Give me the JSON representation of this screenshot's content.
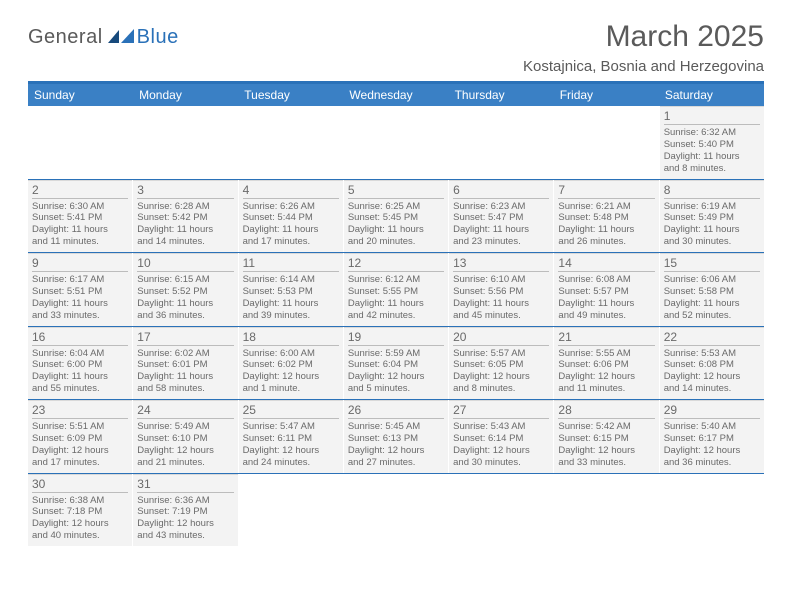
{
  "logo": {
    "textDark": "General",
    "textBlue": "Blue"
  },
  "title": "March 2025",
  "location": "Kostajnica, Bosnia and Herzegovina",
  "colors": {
    "headerBar": "#3a80c5",
    "topBorder": "#2a71b8",
    "cellBg": "#f3f3f3",
    "text": "#5a5a5a"
  },
  "dayNames": [
    "Sunday",
    "Monday",
    "Tuesday",
    "Wednesday",
    "Thursday",
    "Friday",
    "Saturday"
  ],
  "weeks": [
    [
      {
        "empty": true
      },
      {
        "empty": true
      },
      {
        "empty": true
      },
      {
        "empty": true
      },
      {
        "empty": true
      },
      {
        "empty": true
      },
      {
        "num": "1",
        "sunrise": "6:32 AM",
        "sunset": "5:40 PM",
        "dl_h": "11",
        "dl_m": "8"
      }
    ],
    [
      {
        "num": "2",
        "sunrise": "6:30 AM",
        "sunset": "5:41 PM",
        "dl_h": "11",
        "dl_m": "11"
      },
      {
        "num": "3",
        "sunrise": "6:28 AM",
        "sunset": "5:42 PM",
        "dl_h": "11",
        "dl_m": "14"
      },
      {
        "num": "4",
        "sunrise": "6:26 AM",
        "sunset": "5:44 PM",
        "dl_h": "11",
        "dl_m": "17"
      },
      {
        "num": "5",
        "sunrise": "6:25 AM",
        "sunset": "5:45 PM",
        "dl_h": "11",
        "dl_m": "20"
      },
      {
        "num": "6",
        "sunrise": "6:23 AM",
        "sunset": "5:47 PM",
        "dl_h": "11",
        "dl_m": "23"
      },
      {
        "num": "7",
        "sunrise": "6:21 AM",
        "sunset": "5:48 PM",
        "dl_h": "11",
        "dl_m": "26"
      },
      {
        "num": "8",
        "sunrise": "6:19 AM",
        "sunset": "5:49 PM",
        "dl_h": "11",
        "dl_m": "30"
      }
    ],
    [
      {
        "num": "9",
        "sunrise": "6:17 AM",
        "sunset": "5:51 PM",
        "dl_h": "11",
        "dl_m": "33"
      },
      {
        "num": "10",
        "sunrise": "6:15 AM",
        "sunset": "5:52 PM",
        "dl_h": "11",
        "dl_m": "36"
      },
      {
        "num": "11",
        "sunrise": "6:14 AM",
        "sunset": "5:53 PM",
        "dl_h": "11",
        "dl_m": "39"
      },
      {
        "num": "12",
        "sunrise": "6:12 AM",
        "sunset": "5:55 PM",
        "dl_h": "11",
        "dl_m": "42"
      },
      {
        "num": "13",
        "sunrise": "6:10 AM",
        "sunset": "5:56 PM",
        "dl_h": "11",
        "dl_m": "45"
      },
      {
        "num": "14",
        "sunrise": "6:08 AM",
        "sunset": "5:57 PM",
        "dl_h": "11",
        "dl_m": "49"
      },
      {
        "num": "15",
        "sunrise": "6:06 AM",
        "sunset": "5:58 PM",
        "dl_h": "11",
        "dl_m": "52"
      }
    ],
    [
      {
        "num": "16",
        "sunrise": "6:04 AM",
        "sunset": "6:00 PM",
        "dl_h": "11",
        "dl_m": "55"
      },
      {
        "num": "17",
        "sunrise": "6:02 AM",
        "sunset": "6:01 PM",
        "dl_h": "11",
        "dl_m": "58"
      },
      {
        "num": "18",
        "sunrise": "6:00 AM",
        "sunset": "6:02 PM",
        "dl_h": "12",
        "dl_m": "1",
        "singular": true
      },
      {
        "num": "19",
        "sunrise": "5:59 AM",
        "sunset": "6:04 PM",
        "dl_h": "12",
        "dl_m": "5"
      },
      {
        "num": "20",
        "sunrise": "5:57 AM",
        "sunset": "6:05 PM",
        "dl_h": "12",
        "dl_m": "8"
      },
      {
        "num": "21",
        "sunrise": "5:55 AM",
        "sunset": "6:06 PM",
        "dl_h": "12",
        "dl_m": "11"
      },
      {
        "num": "22",
        "sunrise": "5:53 AM",
        "sunset": "6:08 PM",
        "dl_h": "12",
        "dl_m": "14"
      }
    ],
    [
      {
        "num": "23",
        "sunrise": "5:51 AM",
        "sunset": "6:09 PM",
        "dl_h": "12",
        "dl_m": "17"
      },
      {
        "num": "24",
        "sunrise": "5:49 AM",
        "sunset": "6:10 PM",
        "dl_h": "12",
        "dl_m": "21"
      },
      {
        "num": "25",
        "sunrise": "5:47 AM",
        "sunset": "6:11 PM",
        "dl_h": "12",
        "dl_m": "24"
      },
      {
        "num": "26",
        "sunrise": "5:45 AM",
        "sunset": "6:13 PM",
        "dl_h": "12",
        "dl_m": "27"
      },
      {
        "num": "27",
        "sunrise": "5:43 AM",
        "sunset": "6:14 PM",
        "dl_h": "12",
        "dl_m": "30"
      },
      {
        "num": "28",
        "sunrise": "5:42 AM",
        "sunset": "6:15 PM",
        "dl_h": "12",
        "dl_m": "33"
      },
      {
        "num": "29",
        "sunrise": "5:40 AM",
        "sunset": "6:17 PM",
        "dl_h": "12",
        "dl_m": "36"
      }
    ],
    [
      {
        "num": "30",
        "sunrise": "6:38 AM",
        "sunset": "7:18 PM",
        "dl_h": "12",
        "dl_m": "40"
      },
      {
        "num": "31",
        "sunrise": "6:36 AM",
        "sunset": "7:19 PM",
        "dl_h": "12",
        "dl_m": "43"
      },
      {
        "empty": true
      },
      {
        "empty": true
      },
      {
        "empty": true
      },
      {
        "empty": true
      },
      {
        "empty": true
      }
    ]
  ]
}
